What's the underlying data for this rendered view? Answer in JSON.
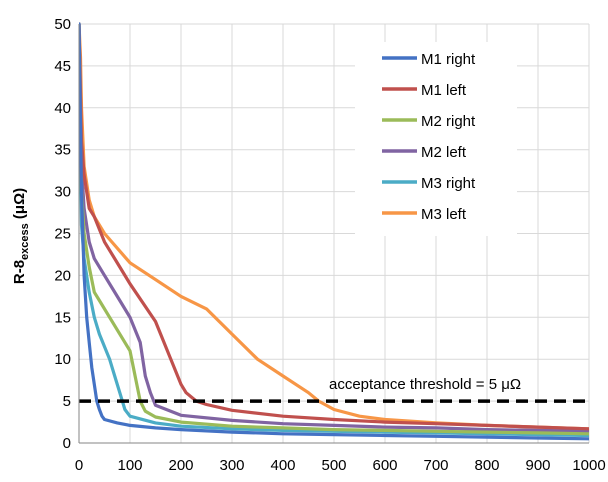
{
  "chart_data": {
    "type": "line",
    "title": "",
    "xlabel": "",
    "ylabel": {
      "main": "R-8",
      "sub": "excess",
      "unit": " (μΩ)"
    },
    "xlim": [
      0,
      1000
    ],
    "ylim": [
      0,
      50
    ],
    "x_ticks": [
      "0",
      "100",
      "200",
      "300",
      "400",
      "500",
      "600",
      "700",
      "800",
      "900",
      "1000"
    ],
    "y_ticks": [
      "0",
      "5",
      "10",
      "15",
      "20",
      "25",
      "30",
      "35",
      "40",
      "45",
      "50"
    ],
    "grid": true,
    "legend_position": "top-right",
    "series": [
      {
        "name": "M1 right",
        "color": "#4472C4",
        "x": [
          0,
          5,
          10,
          15,
          20,
          25,
          30,
          35,
          40,
          45,
          50,
          75,
          100,
          150,
          200,
          300,
          400,
          500,
          600,
          700,
          800,
          900,
          1000
        ],
        "y": [
          50,
          30,
          20,
          15,
          12,
          9,
          7,
          5,
          4,
          3.2,
          2.8,
          2.4,
          2.1,
          1.8,
          1.6,
          1.3,
          1.1,
          1.0,
          0.9,
          0.8,
          0.7,
          0.6,
          0.5
        ]
      },
      {
        "name": "M1 left",
        "color": "#C0504D",
        "x": [
          0,
          5,
          10,
          20,
          30,
          50,
          80,
          100,
          150,
          180,
          200,
          210,
          230,
          250,
          300,
          400,
          500,
          600,
          700,
          800,
          900,
          1000
        ],
        "y": [
          50,
          36,
          32,
          28,
          27,
          24,
          21,
          19,
          14.5,
          10,
          7,
          6,
          5,
          4.6,
          3.9,
          3.2,
          2.8,
          2.5,
          2.3,
          2.1,
          1.9,
          1.7
        ]
      },
      {
        "name": "M2 right",
        "color": "#9BBB59",
        "x": [
          0,
          5,
          10,
          20,
          30,
          40,
          60,
          80,
          100,
          110,
          120,
          130,
          150,
          200,
          300,
          400,
          500,
          600,
          700,
          800,
          900,
          1000
        ],
        "y": [
          50,
          30,
          25,
          21,
          18,
          17,
          15,
          13,
          11,
          8,
          5,
          3.8,
          3.1,
          2.5,
          2.0,
          1.8,
          1.6,
          1.5,
          1.4,
          1.3,
          1.2,
          1.1
        ]
      },
      {
        "name": "M2 left",
        "color": "#8064A2",
        "x": [
          0,
          5,
          10,
          20,
          30,
          50,
          80,
          100,
          120,
          130,
          140,
          150,
          200,
          300,
          400,
          500,
          600,
          700,
          800,
          900,
          1000
        ],
        "y": [
          50,
          33,
          28,
          24,
          22,
          20,
          17,
          15,
          12,
          8,
          6,
          4.5,
          3.3,
          2.7,
          2.3,
          2.1,
          1.9,
          1.8,
          1.6,
          1.5,
          1.4
        ]
      },
      {
        "name": "M3 right",
        "color": "#4BACC6",
        "x": [
          0,
          5,
          10,
          20,
          30,
          40,
          60,
          70,
          80,
          90,
          100,
          150,
          200,
          300,
          400,
          500,
          600,
          700,
          800,
          900,
          1000
        ],
        "y": [
          50,
          26,
          22,
          18,
          15,
          13,
          10,
          8,
          6,
          4,
          3.2,
          2.4,
          2.0,
          1.7,
          1.5,
          1.4,
          1.3,
          1.2,
          1.1,
          1.0,
          0.9
        ]
      },
      {
        "name": "M3 left",
        "color": "#F79646",
        "x": [
          0,
          3,
          5,
          10,
          20,
          30,
          50,
          100,
          150,
          200,
          250,
          300,
          350,
          400,
          450,
          470,
          500,
          550,
          600,
          700,
          800,
          900,
          1000
        ],
        "y": [
          50,
          46,
          40,
          33,
          29,
          27,
          25,
          21.5,
          19.5,
          17.5,
          16,
          13,
          10,
          8,
          6,
          5,
          4,
          3.2,
          2.8,
          2.4,
          2.1,
          1.9,
          1.7
        ]
      }
    ],
    "annotation": {
      "text": "acceptance threshold = 5 μΩ",
      "threshold": 5
    }
  }
}
